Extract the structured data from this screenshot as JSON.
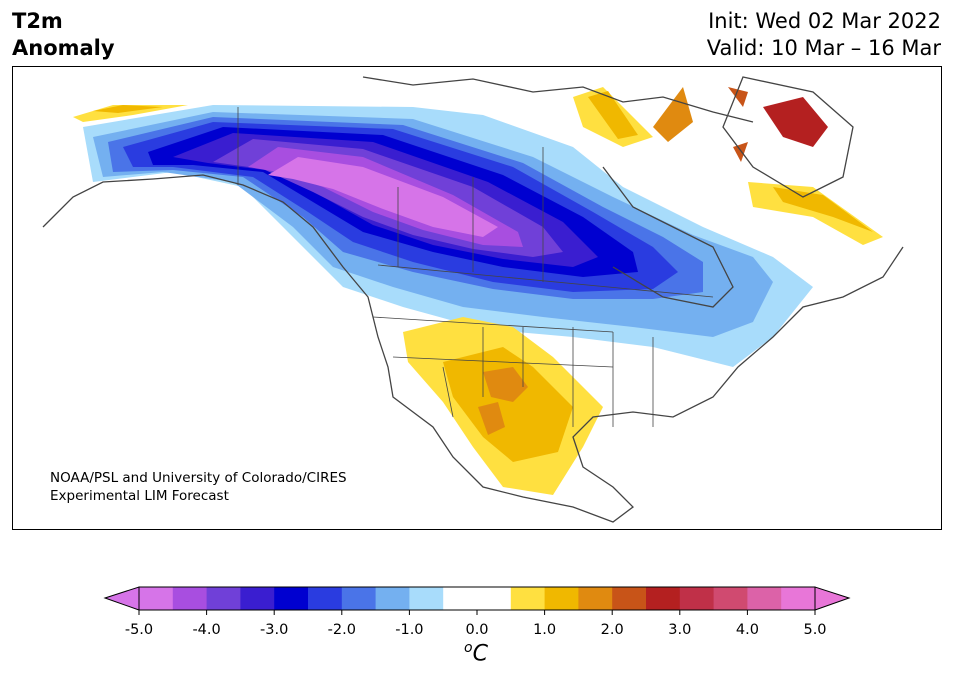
{
  "title": {
    "line1": "T2m",
    "line2": "Anomaly",
    "init": "Init: Wed 02 Mar 2022",
    "valid": "Valid: 10 Mar – 16 Mar"
  },
  "credit": {
    "line1": "NOAA/PSL and University of Colorado/CIRES",
    "line2": "Experimental LIM Forecast"
  },
  "colorbar": {
    "unit_base": "C",
    "unit_sup": "o",
    "ticks": [
      "-5.0",
      "-4.0",
      "-3.0",
      "-2.0",
      "-1.0",
      "0.0",
      "1.0",
      "2.0",
      "3.0",
      "4.0",
      "5.0"
    ],
    "levels": [
      -5.0,
      -4.5,
      -4.0,
      -3.5,
      -3.0,
      -2.5,
      -2.0,
      -1.5,
      -1.0,
      -0.5,
      0.5,
      1.0,
      1.5,
      2.0,
      2.5,
      3.0,
      3.5,
      4.0,
      4.5,
      5.0
    ],
    "colors": [
      "#d674e8",
      "#a84ee0",
      "#7040d8",
      "#3a1ed0",
      "#0000d0",
      "#2a3ce0",
      "#4a74e8",
      "#74b0f0",
      "#a8dcfb",
      "#ffffff",
      "#ffe040",
      "#f0b800",
      "#e08a10",
      "#c85418",
      "#b42020",
      "#c03048",
      "#d04a70",
      "#dc62a8",
      "#e876d8"
    ],
    "extend_low": "#d674e8",
    "extend_high": "#e876d8"
  }
}
